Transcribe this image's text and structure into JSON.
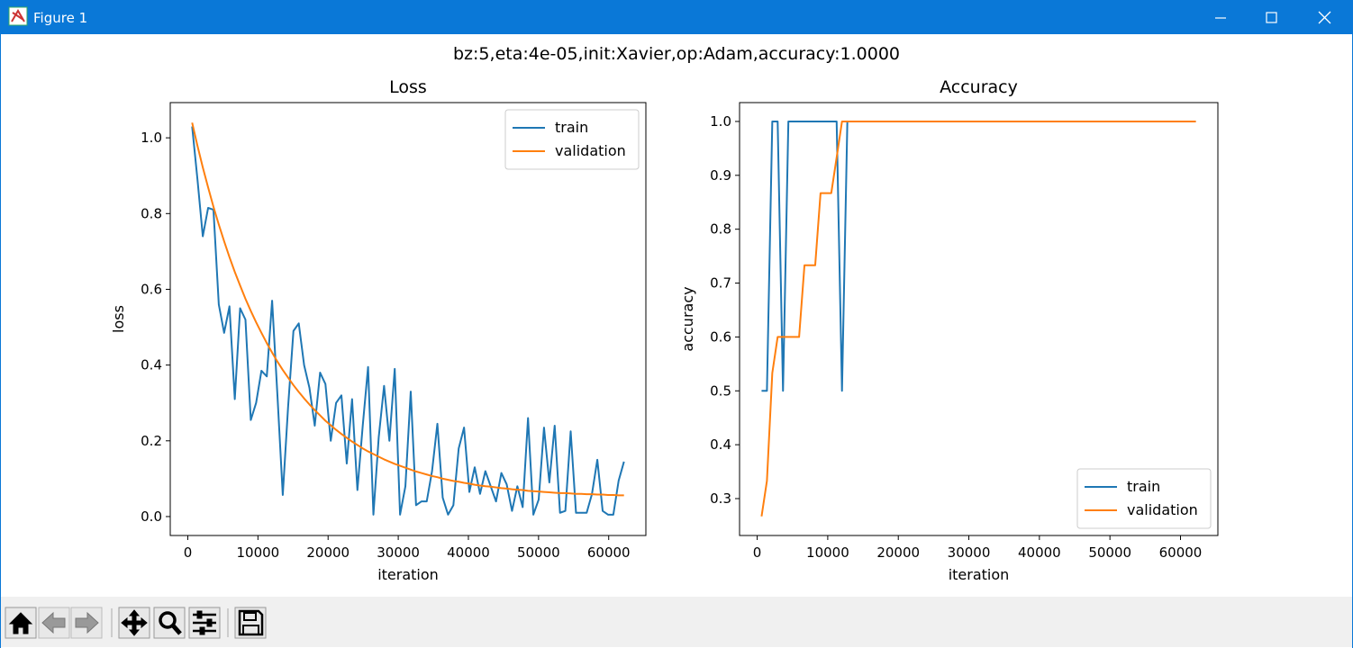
{
  "window": {
    "title": "Figure 1"
  },
  "figure": {
    "suptitle": "bz:5,eta:4e-05,init:Xavier,op:Adam,accuracy:1.0000"
  },
  "chart_data": [
    {
      "type": "line",
      "title": "Loss",
      "xlabel": "iteration",
      "ylabel": "loss",
      "legend": "upper right",
      "x": [
        620,
        1380,
        2140,
        2900,
        3660,
        4420,
        5180,
        5940,
        6700,
        7460,
        8220,
        8980,
        9740,
        10500,
        11260,
        12020,
        12780,
        13540,
        14300,
        15060,
        15820,
        16580,
        17340,
        18100,
        18860,
        19620,
        20380,
        21140,
        21900,
        22660,
        23420,
        24180,
        24940,
        25700,
        26460,
        27220,
        27980,
        28740,
        29500,
        30260,
        31020,
        31780,
        32540,
        33300,
        34060,
        34820,
        35580,
        36340,
        37100,
        37860,
        38620,
        39380,
        40140,
        40900,
        41660,
        42420,
        43180,
        43940,
        44700,
        45460,
        46220,
        46980,
        47740,
        48500,
        49260,
        50020,
        50780,
        51540,
        52300,
        53060,
        53820,
        54580,
        55340,
        56100,
        56860,
        57620,
        58380,
        59140,
        59900,
        60660,
        61420,
        62180
      ],
      "series": [
        {
          "name": "train",
          "color": "#1f77b4",
          "values": [
            1.03,
            0.89,
            0.74,
            0.815,
            0.81,
            0.56,
            0.485,
            0.555,
            0.31,
            0.55,
            0.52,
            0.255,
            0.3,
            0.385,
            0.37,
            0.57,
            0.32,
            0.057,
            0.29,
            0.49,
            0.51,
            0.4,
            0.34,
            0.24,
            0.38,
            0.35,
            0.2,
            0.3,
            0.32,
            0.14,
            0.31,
            0.07,
            0.24,
            0.395,
            0.005,
            0.21,
            0.345,
            0.2,
            0.39,
            0.005,
            0.08,
            0.33,
            0.03,
            0.04,
            0.04,
            0.12,
            0.245,
            0.05,
            0.005,
            0.03,
            0.18,
            0.235,
            0.065,
            0.13,
            0.06,
            0.12,
            0.08,
            0.04,
            0.115,
            0.085,
            0.015,
            0.08,
            0.025,
            0.26,
            0.005,
            0.045,
            0.235,
            0.09,
            0.24,
            0.01,
            0.015,
            0.225,
            0.01,
            0.01,
            0.01,
            0.06,
            0.15,
            0.015,
            0.005,
            0.005,
            0.095,
            0.145
          ]
        },
        {
          "name": "validation",
          "color": "#ff7f0e",
          "values": [
            1.04,
            0.979,
            0.922,
            0.869,
            0.818,
            0.771,
            0.727,
            0.685,
            0.646,
            0.61,
            0.575,
            0.543,
            0.513,
            0.485,
            0.458,
            0.433,
            0.409,
            0.387,
            0.367,
            0.347,
            0.329,
            0.312,
            0.296,
            0.281,
            0.267,
            0.253,
            0.241,
            0.229,
            0.218,
            0.208,
            0.198,
            0.189,
            0.18,
            0.172,
            0.165,
            0.158,
            0.151,
            0.145,
            0.139,
            0.134,
            0.129,
            0.124,
            0.119,
            0.115,
            0.111,
            0.107,
            0.104,
            0.1,
            0.097,
            0.094,
            0.092,
            0.089,
            0.087,
            0.084,
            0.082,
            0.08,
            0.079,
            0.077,
            0.075,
            0.074,
            0.072,
            0.071,
            0.07,
            0.068,
            0.067,
            0.066,
            0.065,
            0.064,
            0.063,
            0.062,
            0.062,
            0.061,
            0.06,
            0.06,
            0.059,
            0.059,
            0.058,
            0.058,
            0.057,
            0.057,
            0.056,
            0.056
          ]
        }
      ],
      "xlim": [
        -2500,
        65300
      ],
      "xticks": [
        0,
        10000,
        20000,
        30000,
        40000,
        50000,
        60000
      ],
      "ylim": [
        -0.05,
        1.093
      ],
      "yticks": [
        {
          "value": 0,
          "label": "0.0"
        },
        0.2,
        0.4,
        0.6,
        0.8,
        {
          "value": 1,
          "label": "1.0"
        }
      ]
    },
    {
      "type": "line",
      "title": "Accuracy",
      "xlabel": "iteration",
      "ylabel": "accuracy",
      "legend": "lower right",
      "x": [
        620,
        1380,
        2140,
        2900,
        3660,
        4420,
        5180,
        5940,
        6700,
        7460,
        8220,
        8980,
        9740,
        10500,
        11260,
        12020,
        12780,
        13540,
        14300,
        15060,
        15820,
        16580,
        17340,
        18100,
        18860,
        19620,
        20380,
        21140,
        21900,
        22660,
        23420,
        24180,
        24940,
        25700,
        26460,
        27220,
        27980,
        28740,
        29500,
        30260,
        31020,
        31780,
        32540,
        33300,
        34060,
        34820,
        35580,
        36340,
        37100,
        37860,
        38620,
        39380,
        40140,
        40900,
        41660,
        42420,
        43180,
        43940,
        44700,
        45460,
        46220,
        46980,
        47740,
        48500,
        49260,
        50020,
        50780,
        51540,
        52300,
        53060,
        53820,
        54580,
        55340,
        56100,
        56860,
        57620,
        58380,
        59140,
        59900,
        60660,
        61420,
        62180
      ],
      "series": [
        {
          "name": "train",
          "color": "#1f77b4",
          "values": [
            0.5,
            0.5,
            1,
            1,
            0.5,
            1,
            1,
            1,
            1,
            1,
            1,
            1,
            1,
            1,
            1,
            0.5,
            1,
            1,
            1,
            1,
            1,
            1,
            1,
            1,
            1,
            1,
            1,
            1,
            1,
            1,
            1,
            1,
            1,
            1,
            1,
            1,
            1,
            1,
            1,
            1,
            1,
            1,
            1,
            1,
            1,
            1,
            1,
            1,
            1,
            1,
            1,
            1,
            1,
            1,
            1,
            1,
            1,
            1,
            1,
            1,
            1,
            1,
            1,
            1,
            1,
            1,
            1,
            1,
            1,
            1,
            1,
            1,
            1,
            1,
            1,
            1,
            1,
            1,
            1,
            1,
            1,
            1
          ]
        },
        {
          "name": "validation",
          "color": "#ff7f0e",
          "values": [
            0.267,
            0.333,
            0.533,
            0.6,
            0.6,
            0.6,
            0.6,
            0.6,
            0.733,
            0.733,
            0.733,
            0.867,
            0.867,
            0.867,
            0.933,
            1,
            1,
            1,
            1,
            1,
            1,
            1,
            1,
            1,
            1,
            1,
            1,
            1,
            1,
            1,
            1,
            1,
            1,
            1,
            1,
            1,
            1,
            1,
            1,
            1,
            1,
            1,
            1,
            1,
            1,
            1,
            1,
            1,
            1,
            1,
            1,
            1,
            1,
            1,
            1,
            1,
            1,
            1,
            1,
            1,
            1,
            1,
            1,
            1,
            1,
            1,
            1,
            1,
            1,
            1,
            1,
            1,
            1,
            1,
            1,
            1,
            1,
            1,
            1,
            1,
            1,
            1
          ]
        }
      ],
      "xlim": [
        -2500,
        65300
      ],
      "xticks": [
        0,
        10000,
        20000,
        30000,
        40000,
        50000,
        60000
      ],
      "ylim": [
        0.2315,
        1.035
      ],
      "yticks": [
        0.3,
        0.4,
        0.5,
        0.6,
        0.7,
        0.8,
        0.9,
        {
          "value": 1,
          "label": "1.0"
        }
      ]
    }
  ]
}
